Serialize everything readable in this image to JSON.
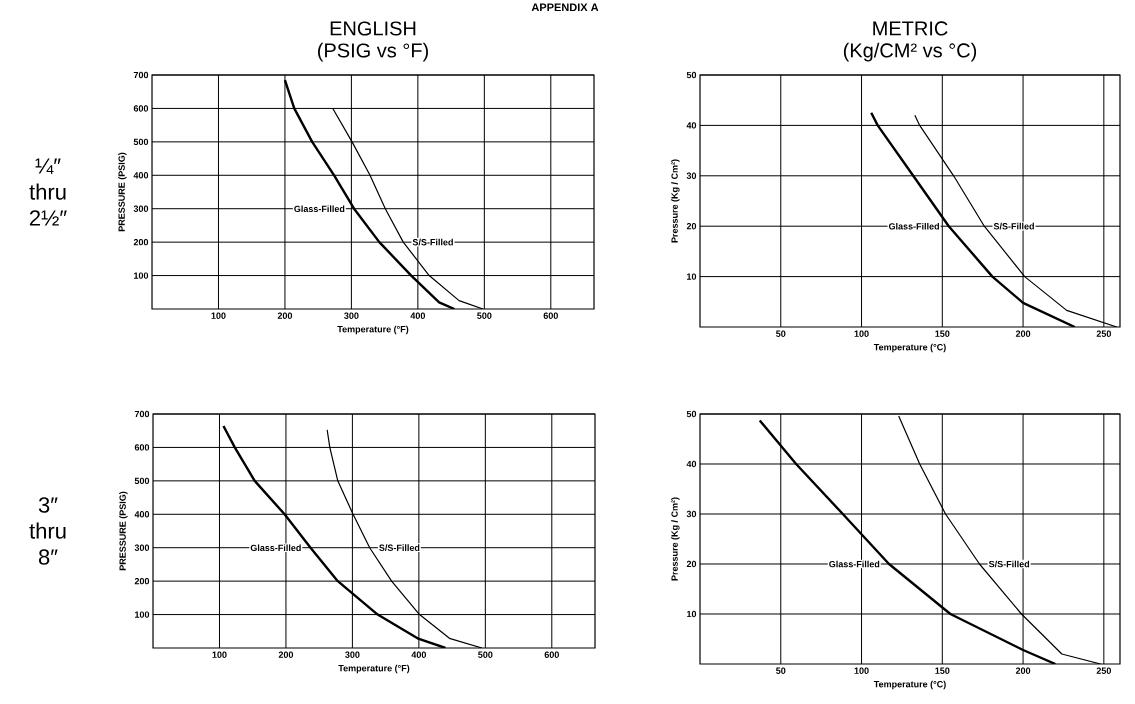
{
  "chart_data": [
    {
      "type": "line",
      "title": "ENGLISH",
      "subtitle": "(PSIG vs °F)",
      "xlabel": "Temperature (°F)",
      "ylabel": "PRESSURE (PSIG)",
      "xlim": [
        0,
        665
      ],
      "ylim": [
        0,
        700
      ],
      "xticks": [
        100,
        200,
        300,
        400,
        500,
        600
      ],
      "yticks": [
        100,
        200,
        300,
        400,
        500,
        600,
        700
      ],
      "grid": true,
      "annotations": [
        "APPENDIX A",
        "¼″ thru 2½″"
      ],
      "series": [
        {
          "name": "Glass-Filled",
          "color": "#000000",
          "x": [
            200,
            214,
            241,
            274,
            304,
            342,
            390,
            432,
            455
          ],
          "values": [
            685,
            600,
            500,
            400,
            300,
            200,
            100,
            20,
            0
          ]
        },
        {
          "name": "S/S-Filled",
          "color": "#000000",
          "x": [
            272,
            301,
            328,
            351,
            378,
            417,
            462,
            498
          ],
          "values": [
            600,
            500,
            400,
            300,
            200,
            100,
            25,
            0
          ]
        }
      ]
    },
    {
      "type": "line",
      "title": "METRIC",
      "subtitle": "(Kg/CM² vs °C)",
      "xlabel": "Temperature (°C)",
      "ylabel": "Pressure (Kg / Cm²)",
      "xlim": [
        0,
        260
      ],
      "ylim": [
        0,
        50
      ],
      "xticks": [
        50,
        100,
        150,
        200,
        250
      ],
      "yticks": [
        10,
        20,
        30,
        40,
        50
      ],
      "grid": true,
      "series": [
        {
          "name": "Glass-Filled",
          "color": "#000000",
          "x": [
            106,
            110,
            132,
            154,
            181,
            200,
            232
          ],
          "values": [
            42.5,
            40,
            30,
            20,
            10,
            4.8,
            0
          ]
        },
        {
          "name": "S/S-Filled",
          "color": "#000000",
          "x": [
            133,
            136,
            157,
            176,
            201,
            227,
            258
          ],
          "values": [
            42,
            40,
            30,
            20,
            10,
            3.3,
            0
          ]
        }
      ]
    },
    {
      "type": "line",
      "xlabel": "Temperature (°F)",
      "ylabel": "PRESSURE (PSIG)",
      "xlim": [
        0,
        665
      ],
      "ylim": [
        0,
        700
      ],
      "xticks": [
        100,
        200,
        300,
        400,
        500,
        600
      ],
      "yticks": [
        100,
        200,
        300,
        400,
        500,
        600,
        700
      ],
      "grid": true,
      "annotations": [
        "3″ thru 8″"
      ],
      "series": [
        {
          "name": "Glass-Filled",
          "color": "#000000",
          "x": [
            106,
            123,
            153,
            198,
            237,
            278,
            338,
            398,
            440
          ],
          "values": [
            664,
            600,
            500,
            400,
            300,
            200,
            100,
            29,
            0
          ]
        },
        {
          "name": "S/S-Filled",
          "color": "#000000",
          "x": [
            262,
            266,
            278,
            301,
            326,
            359,
            401,
            446,
            495
          ],
          "values": [
            653,
            600,
            500,
            400,
            300,
            200,
            100,
            29,
            0
          ]
        }
      ]
    },
    {
      "type": "line",
      "xlabel": "Temperature (°C)",
      "ylabel": "Pressure (Kg / Cm²)",
      "xlim": [
        0,
        260
      ],
      "ylim": [
        0,
        50
      ],
      "xticks": [
        50,
        100,
        150,
        200,
        250
      ],
      "yticks": [
        10,
        20,
        30,
        40,
        50
      ],
      "grid": true,
      "series": [
        {
          "name": "Glass-Filled",
          "color": "#000000",
          "x": [
            37,
            59.5,
            88.4,
            117,
            155,
            200,
            220
          ],
          "values": [
            48.7,
            40,
            30,
            20,
            10,
            2.8,
            0
          ]
        },
        {
          "name": "S/S-Filled",
          "color": "#000000",
          "x": [
            123,
            136,
            152,
            173,
            199,
            224,
            248
          ],
          "values": [
            49.6,
            40,
            30,
            20,
            10,
            2,
            0
          ]
        }
      ]
    }
  ]
}
